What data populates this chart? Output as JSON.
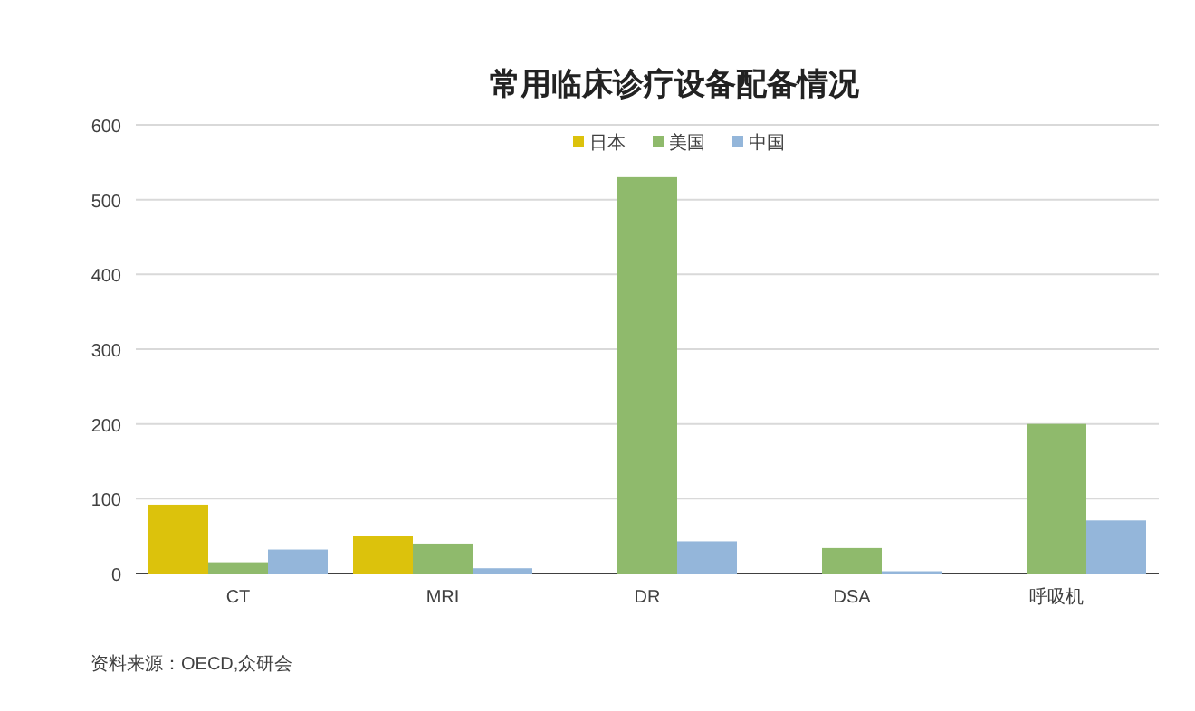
{
  "chart_data": {
    "type": "bar",
    "title": "常用临床诊疗设备配备情况",
    "categories": [
      "CT",
      "MRI",
      "DR",
      "DSA",
      "呼吸机"
    ],
    "series": [
      {
        "name": "日本",
        "color": "#dcc20c",
        "values": [
          92,
          50,
          null,
          null,
          null
        ]
      },
      {
        "name": "美国",
        "color": "#8fba6c",
        "values": [
          15,
          40,
          530,
          34,
          200
        ]
      },
      {
        "name": "中国",
        "color": "#94b6da",
        "values": [
          32,
          7,
          43,
          3,
          71
        ]
      }
    ],
    "ylim": [
      0,
      600
    ],
    "yticks": [
      0,
      100,
      200,
      300,
      400,
      500,
      600
    ],
    "grid": "y",
    "legend": "top",
    "annotations": [
      "资料来源：OECD,众研会"
    ]
  }
}
